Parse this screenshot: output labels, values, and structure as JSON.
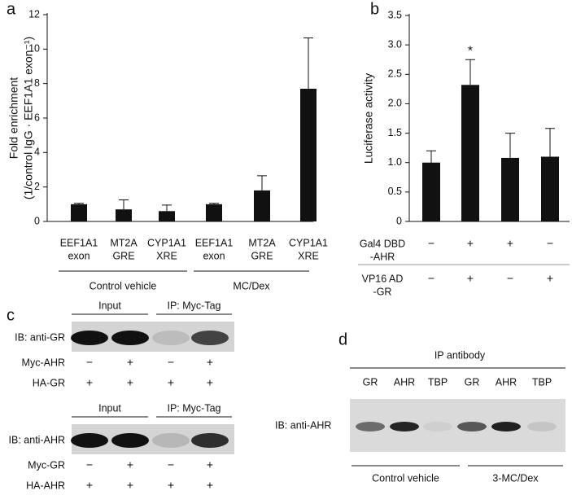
{
  "chart_data": [
    {
      "type": "bar",
      "panel": "a",
      "ylabel": [
        "Fold enrichment",
        "(1/control IgG · EEF1A1 exon⁻¹)"
      ],
      "categories": [
        [
          "EEF1A1",
          "exon"
        ],
        [
          "MT2A",
          "GRE"
        ],
        [
          "CYP1A1",
          "XRE"
        ],
        [
          "EEF1A1",
          "exon"
        ],
        [
          "MT2A",
          "GRE"
        ],
        [
          "CYP1A1",
          "XRE"
        ]
      ],
      "values": [
        1.0,
        0.7,
        0.6,
        1.0,
        1.8,
        7.7
      ],
      "errors": [
        0.05,
        0.55,
        0.35,
        0.05,
        0.85,
        2.95
      ],
      "group_labels": [
        "Control vehicle",
        "MC/Dex"
      ],
      "color": "#111111",
      "ylim": [
        0,
        12
      ],
      "yticks": [
        0,
        2,
        4,
        6,
        8,
        10,
        12
      ]
    },
    {
      "type": "bar",
      "panel": "b",
      "ylabel": [
        "Luciferase activity"
      ],
      "values": [
        1.0,
        2.32,
        1.08,
        1.1
      ],
      "errors": [
        0.2,
        0.43,
        0.42,
        0.48
      ],
      "annotations": [
        null,
        "*",
        null,
        null
      ],
      "conditions": [
        {
          "label": [
            "Gal4 DBD",
            "-AHR"
          ],
          "signs": [
            "−",
            "+",
            "+",
            "−"
          ]
        },
        {
          "label": [
            "VP16 AD",
            "-GR"
          ],
          "signs": [
            "−",
            "+",
            "−",
            "+"
          ]
        }
      ],
      "color": "#111111",
      "ylim": [
        0,
        3.5
      ],
      "yticks": [
        0,
        0.5,
        {
          "value": 1,
          "label": "1.0"
        },
        1.5,
        {
          "value": 2,
          "label": "2.0"
        },
        2.5,
        {
          "value": 3,
          "label": "3.0"
        },
        3.5
      ]
    }
  ],
  "blot_c": {
    "panel": "c",
    "blots": [
      {
        "headers": [
          "Input",
          "IP: Myc-Tag"
        ],
        "ib": "IB: anti-GR",
        "rows": [
          {
            "label": "Myc-AHR",
            "signs": [
              "−",
              "+",
              "−",
              "+"
            ]
          },
          {
            "label": "HA-GR",
            "signs": [
              "+",
              "+",
              "+",
              "+"
            ]
          }
        ]
      },
      {
        "headers": [
          "Input",
          "IP: Myc-Tag"
        ],
        "ib": "IB: anti-AHR",
        "rows": [
          {
            "label": "Myc-GR",
            "signs": [
              "−",
              "+",
              "−",
              "+"
            ]
          },
          {
            "label": "HA-AHR",
            "signs": [
              "+",
              "+",
              "+",
              "+"
            ]
          }
        ]
      }
    ]
  },
  "blot_d": {
    "panel": "d",
    "header": "IP antibody",
    "lanes": [
      "GR",
      "AHR",
      "TBP",
      "GR",
      "AHR",
      "TBP"
    ],
    "ib": "IB: anti-AHR",
    "groups": [
      "Control vehicle",
      "3-MC/Dex"
    ]
  }
}
